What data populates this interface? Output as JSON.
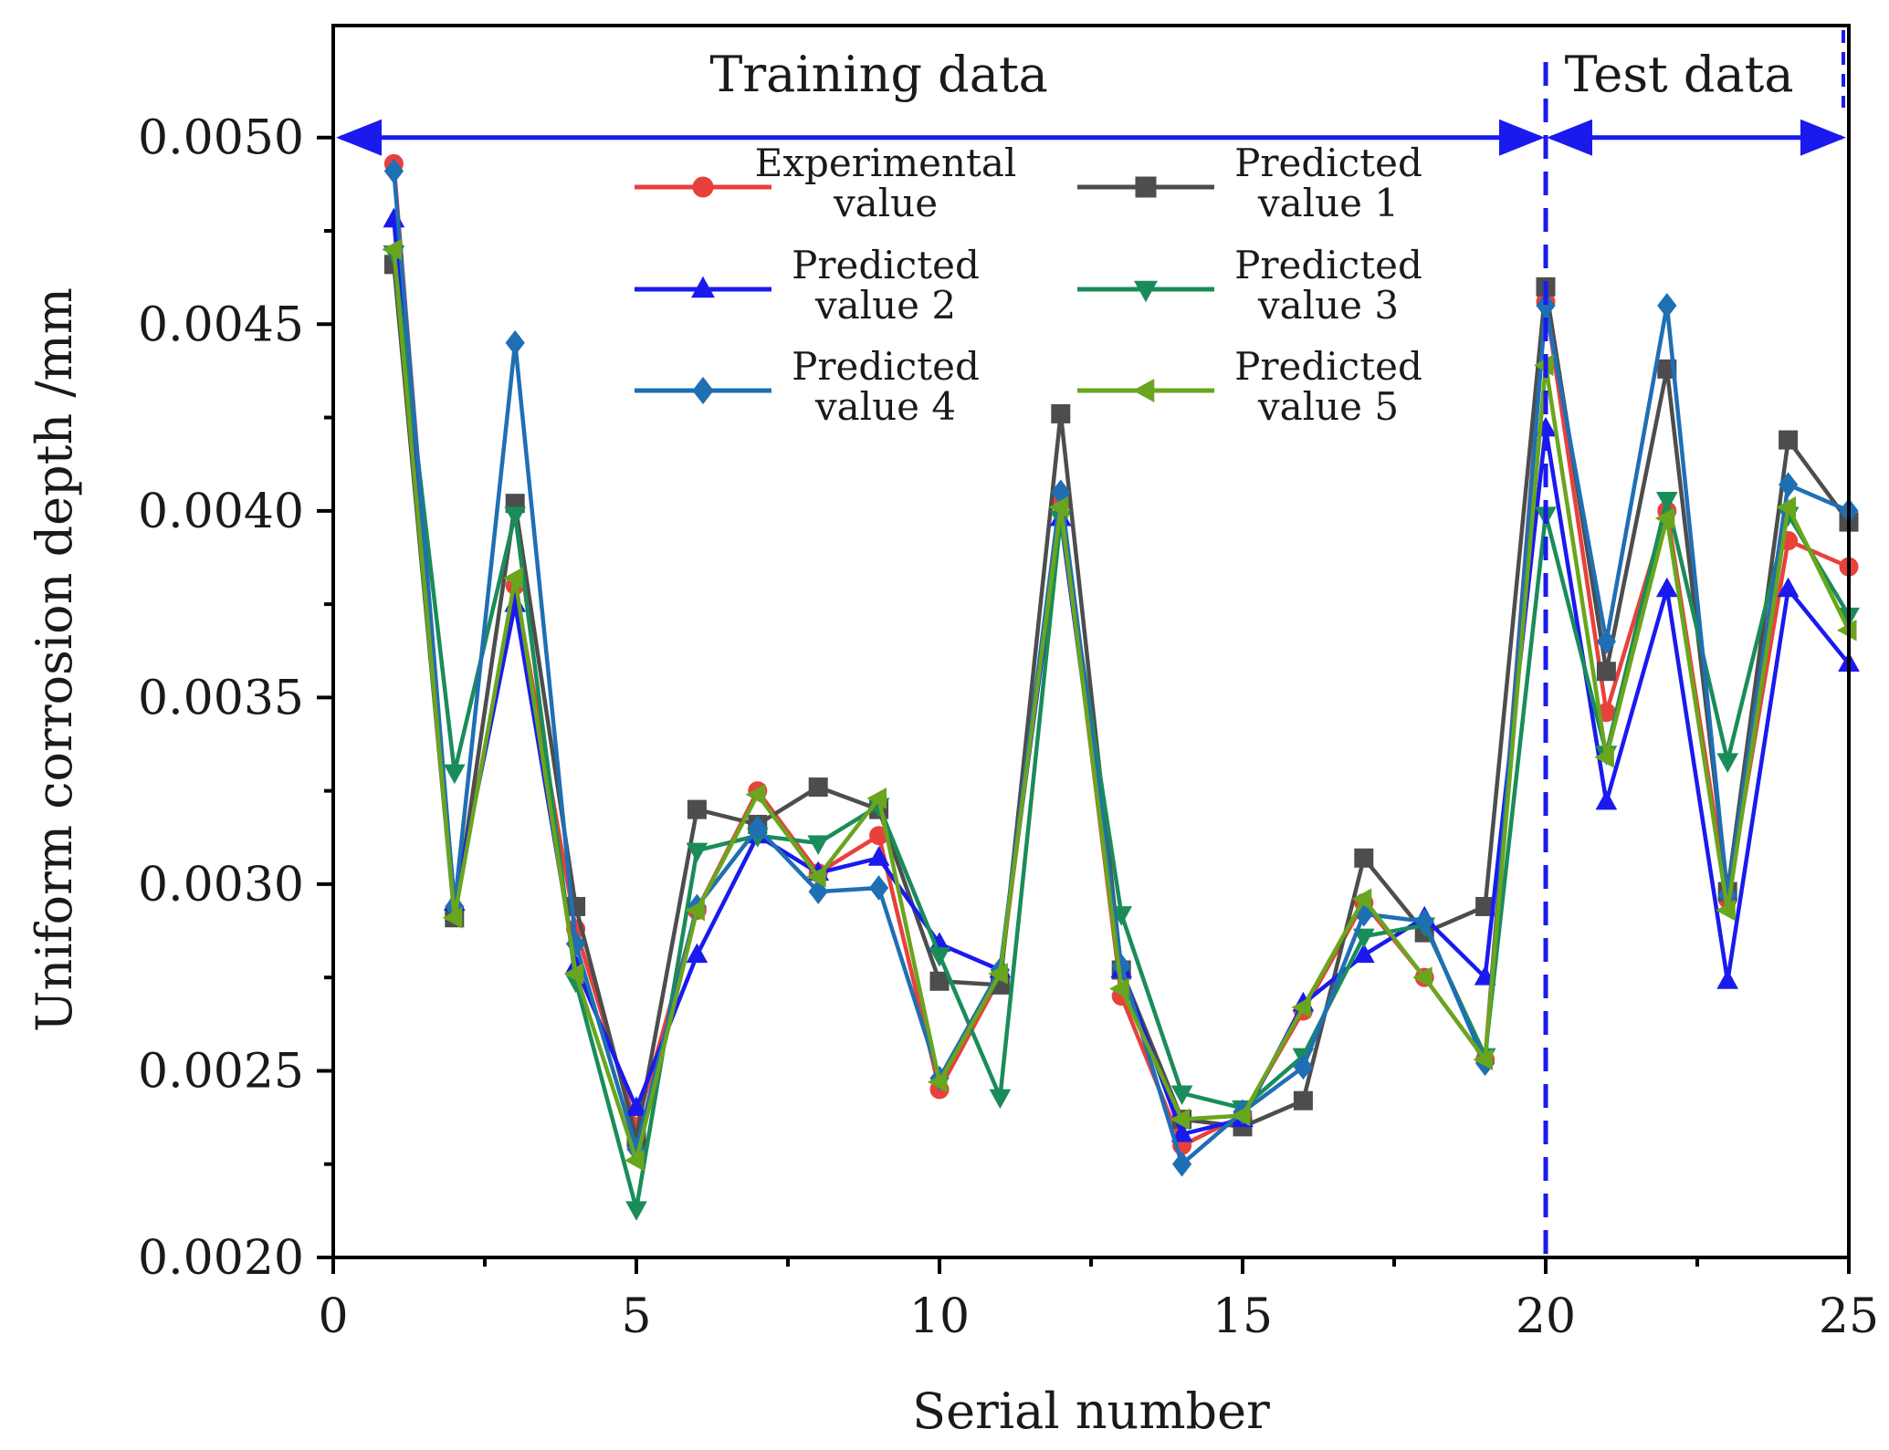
{
  "chart_data": {
    "type": "line",
    "title": "",
    "xlabel": "Serial number",
    "ylabel": "Uniform corrosion depth /mm",
    "xlim": [
      0,
      25
    ],
    "ylim": [
      0.002,
      0.0053
    ],
    "xticks": [
      0,
      5,
      10,
      15,
      20,
      25
    ],
    "xtick_labels": [
      "0",
      "5",
      "10",
      "15",
      "20",
      "25"
    ],
    "yticks": [
      0.002,
      0.0025,
      0.003,
      0.0035,
      0.004,
      0.0045,
      0.005
    ],
    "ytick_labels": [
      "0.0020",
      "0.0025",
      "0.0030",
      "0.0035",
      "0.0040",
      "0.0045",
      "0.0050"
    ],
    "annotations": {
      "training": "Training data",
      "test": "Test data",
      "split_x": 20,
      "arrow_y": 0.005
    },
    "legend_position": "top-center",
    "x": [
      1,
      2,
      3,
      4,
      5,
      6,
      7,
      8,
      9,
      10,
      11,
      12,
      13,
      14,
      15,
      16,
      17,
      18,
      19,
      20,
      21,
      22,
      23,
      24,
      25
    ],
    "series": [
      {
        "name": "Experimental value",
        "legend_lines": [
          "Experimental",
          "value"
        ],
        "color": "#e8413c",
        "marker": "circle",
        "values": [
          0.00493,
          0.00293,
          0.0038,
          0.00288,
          0.00235,
          0.00293,
          0.00325,
          0.00303,
          0.00313,
          0.00245,
          0.00275,
          0.00402,
          0.0027,
          0.0023,
          0.00238,
          0.00266,
          0.00295,
          0.00275,
          0.00253,
          0.00456,
          0.00346,
          0.004,
          0.00296,
          0.00392,
          0.00385
        ]
      },
      {
        "name": "Predicted value 1",
        "legend_lines": [
          "Predicted",
          "value 1"
        ],
        "color": "#4d4d4d",
        "marker": "square",
        "values": [
          0.00466,
          0.00291,
          0.00402,
          0.00294,
          0.00232,
          0.0032,
          0.00316,
          0.00326,
          0.0032,
          0.00274,
          0.00273,
          0.00426,
          0.00277,
          0.00237,
          0.00235,
          0.00242,
          0.00307,
          0.00287,
          0.00294,
          0.0046,
          0.00357,
          0.00438,
          0.00298,
          0.00419,
          0.00397
        ]
      },
      {
        "name": "Predicted value 2",
        "legend_lines": [
          "Predicted",
          "value 2"
        ],
        "color": "#1a1aee",
        "marker": "triangle-up",
        "values": [
          0.00478,
          0.00295,
          0.00375,
          0.00278,
          0.0024,
          0.00281,
          0.00313,
          0.00303,
          0.00307,
          0.00284,
          0.00277,
          0.00398,
          0.00277,
          0.00233,
          0.00237,
          0.00268,
          0.00281,
          0.00291,
          0.00275,
          0.00422,
          0.00322,
          0.00379,
          0.00274,
          0.00379,
          0.00359
        ]
      },
      {
        "name": "Predicted value 3",
        "legend_lines": [
          "Predicted",
          "value 3"
        ],
        "color": "#1a8c5a",
        "marker": "triangle-down",
        "values": [
          0.00469,
          0.0033,
          0.00399,
          0.00274,
          0.00213,
          0.00309,
          0.00313,
          0.00311,
          0.00321,
          0.00281,
          0.00243,
          0.00398,
          0.00292,
          0.00244,
          0.0024,
          0.00254,
          0.00286,
          0.00289,
          0.00254,
          0.00399,
          0.00335,
          0.00403,
          0.00333,
          0.00399,
          0.00372
        ]
      },
      {
        "name": "Predicted value 4",
        "legend_lines": [
          "Predicted",
          "value 4"
        ],
        "color": "#1f6fb4",
        "marker": "diamond",
        "values": [
          0.00491,
          0.00294,
          0.00445,
          0.00284,
          0.00229,
          0.00294,
          0.00315,
          0.00298,
          0.00299,
          0.00248,
          0.00277,
          0.00405,
          0.00278,
          0.00225,
          0.00239,
          0.00251,
          0.00292,
          0.0029,
          0.00252,
          0.00455,
          0.00365,
          0.00455,
          0.00297,
          0.00407,
          0.004
        ]
      },
      {
        "name": "Predicted value 5",
        "legend_lines": [
          "Predicted",
          "value 5"
        ],
        "color": "#6aa51e",
        "marker": "triangle-left",
        "values": [
          0.0047,
          0.00291,
          0.00382,
          0.00276,
          0.00226,
          0.00293,
          0.00324,
          0.00302,
          0.00323,
          0.00247,
          0.00276,
          0.00401,
          0.00272,
          0.00237,
          0.00238,
          0.00267,
          0.00296,
          0.00275,
          0.00253,
          0.00439,
          0.00334,
          0.00398,
          0.00293,
          0.00401,
          0.00368
        ]
      }
    ]
  }
}
